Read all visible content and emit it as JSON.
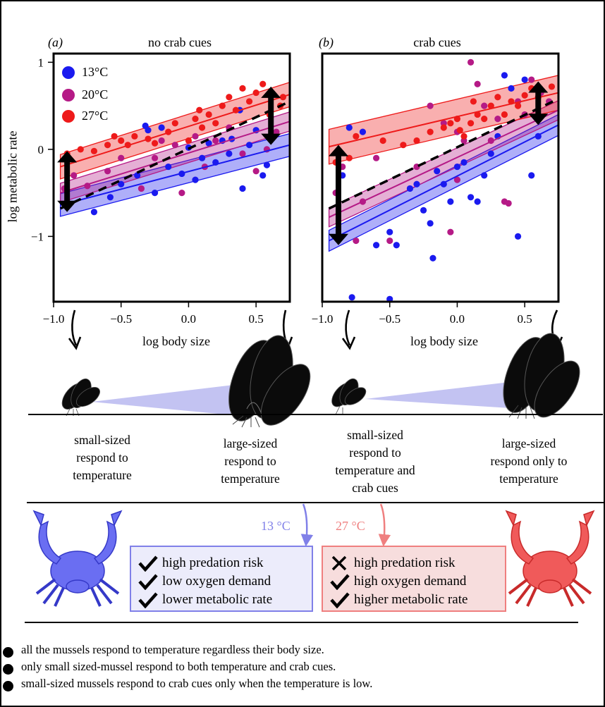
{
  "panels": [
    {
      "tag": "(a)",
      "title": "no crab cues"
    },
    {
      "tag": "(b)",
      "title": "crab cues"
    }
  ],
  "legend": [
    {
      "label": "13°C",
      "color": "#1a1aef"
    },
    {
      "label": "20°C",
      "color": "#b51a86"
    },
    {
      "label": "27°C",
      "color": "#ee1a1a"
    }
  ],
  "chart_data": [
    {
      "type": "scatter",
      "title": "no crab cues",
      "xlabel": "log body size",
      "ylabel": "log metabolic rate",
      "xlim": [
        -1.0,
        0.75
      ],
      "ylim": [
        -1.75,
        1.1
      ],
      "x_ticks": [
        "−1.0",
        "−0.5",
        "0.0",
        "0.5"
      ],
      "y_ticks": [
        "1",
        "0",
        "−1"
      ],
      "series": [
        {
          "name": "13°C",
          "fit": [
            [
              -0.95,
              -0.64
            ],
            [
              0.75,
              0.05
            ]
          ],
          "band": 0.13,
          "points": [
            [
              -0.7,
              -0.72
            ],
            [
              -0.58,
              -0.55
            ],
            [
              -0.5,
              -0.4
            ],
            [
              -0.38,
              -0.3
            ],
            [
              -0.3,
              0.22
            ],
            [
              -0.2,
              0.25
            ],
            [
              -0.15,
              -0.2
            ],
            [
              -0.05,
              -0.28
            ],
            [
              0.0,
              0.02
            ],
            [
              0.05,
              -0.35
            ],
            [
              0.1,
              -0.1
            ],
            [
              0.15,
              0.07
            ],
            [
              0.2,
              -0.15
            ],
            [
              0.3,
              -0.05
            ],
            [
              0.32,
              0.12
            ],
            [
              0.38,
              0.45
            ],
            [
              0.4,
              -0.45
            ],
            [
              0.45,
              0.05
            ],
            [
              0.5,
              0.22
            ],
            [
              0.55,
              -0.3
            ],
            [
              0.58,
              -0.18
            ],
            [
              -0.32,
              0.27
            ],
            [
              -0.25,
              -0.5
            ],
            [
              0.25,
              0.1
            ]
          ]
        },
        {
          "name": "20°C",
          "fit": [
            [
              -0.95,
              -0.5
            ],
            [
              0.75,
              0.32
            ]
          ],
          "band": 0.11,
          "points": [
            [
              -0.92,
              -0.45
            ],
            [
              -0.85,
              -0.3
            ],
            [
              -0.75,
              -0.42
            ],
            [
              -0.6,
              -0.25
            ],
            [
              -0.5,
              -0.1
            ],
            [
              -0.35,
              -0.45
            ],
            [
              -0.25,
              -0.1
            ],
            [
              -0.1,
              0.05
            ],
            [
              -0.05,
              -0.5
            ],
            [
              0.05,
              0.15
            ],
            [
              0.12,
              -0.2
            ],
            [
              0.2,
              0.1
            ],
            [
              0.3,
              0.25
            ],
            [
              0.4,
              -0.05
            ],
            [
              0.5,
              -0.25
            ],
            [
              0.58,
              0.0
            ],
            [
              0.65,
              0.2
            ],
            [
              -0.2,
              0.1
            ]
          ]
        },
        {
          "name": "27°C",
          "fit": [
            [
              -0.95,
              -0.2
            ],
            [
              0.75,
              0.63
            ]
          ],
          "band": 0.14,
          "points": [
            [
              -0.9,
              -0.05
            ],
            [
              -0.8,
              0.0
            ],
            [
              -0.7,
              -0.02
            ],
            [
              -0.6,
              0.05
            ],
            [
              -0.5,
              0.1
            ],
            [
              -0.45,
              0.05
            ],
            [
              -0.4,
              0.15
            ],
            [
              -0.3,
              0.12
            ],
            [
              -0.25,
              0.07
            ],
            [
              -0.15,
              0.2
            ],
            [
              -0.1,
              0.3
            ],
            [
              0.0,
              0.1
            ],
            [
              0.05,
              0.35
            ],
            [
              0.1,
              0.25
            ],
            [
              0.15,
              0.4
            ],
            [
              0.2,
              0.3
            ],
            [
              0.25,
              0.5
            ],
            [
              0.3,
              0.6
            ],
            [
              0.35,
              0.45
            ],
            [
              0.4,
              0.7
            ],
            [
              0.45,
              0.55
            ],
            [
              0.5,
              0.65
            ],
            [
              0.55,
              0.75
            ],
            [
              0.6,
              0.4
            ],
            [
              0.68,
              0.5
            ],
            [
              0.7,
              0.6
            ],
            [
              -0.55,
              0.15
            ],
            [
              0.08,
              0.45
            ]
          ]
        },
        {
          "name": "",
          "style": "dashed",
          "fit": [
            [
              -0.95,
              -0.68
            ],
            [
              0.75,
              0.55
            ]
          ]
        }
      ]
    },
    {
      "type": "scatter",
      "title": "crab cues",
      "xlabel": "log body size",
      "ylabel": "",
      "xlim": [
        -1.0,
        0.75
      ],
      "ylim": [
        -1.75,
        1.1
      ],
      "x_ticks": [
        "−1.0",
        "−0.5",
        "0.0",
        "0.5"
      ],
      "y_ticks": [],
      "series": [
        {
          "name": "13°C",
          "fit": [
            [
              -0.95,
              -1.05
            ],
            [
              0.75,
              0.28
            ]
          ],
          "band": 0.12,
          "points": [
            [
              -0.8,
              0.25
            ],
            [
              -0.7,
              0.2
            ],
            [
              -0.85,
              -0.3
            ],
            [
              -0.6,
              -1.1
            ],
            [
              -0.5,
              -0.95
            ],
            [
              -0.45,
              -1.1
            ],
            [
              -0.35,
              -0.45
            ],
            [
              -0.3,
              -0.4
            ],
            [
              -0.25,
              -0.7
            ],
            [
              -0.2,
              -0.85
            ],
            [
              -0.15,
              -0.25
            ],
            [
              -0.1,
              -0.4
            ],
            [
              -0.05,
              -0.6
            ],
            [
              0.0,
              -0.2
            ],
            [
              0.05,
              -0.15
            ],
            [
              0.1,
              -0.55
            ],
            [
              0.15,
              -0.6
            ],
            [
              0.2,
              -0.3
            ],
            [
              0.25,
              -0.05
            ],
            [
              0.3,
              0.15
            ],
            [
              0.35,
              0.85
            ],
            [
              0.4,
              0.7
            ],
            [
              0.5,
              0.8
            ],
            [
              0.55,
              -0.3
            ],
            [
              0.45,
              -1.0
            ],
            [
              -0.78,
              -1.7
            ],
            [
              -0.5,
              -1.72
            ],
            [
              -0.18,
              -1.25
            ],
            [
              0.6,
              0.15
            ]
          ]
        },
        {
          "name": "20°C",
          "fit": [
            [
              -0.95,
              -0.78
            ],
            [
              0.75,
              0.45
            ]
          ],
          "band": 0.11,
          "points": [
            [
              -0.9,
              -0.5
            ],
            [
              -0.85,
              -0.2
            ],
            [
              -0.7,
              -0.6
            ],
            [
              -0.6,
              -0.1
            ],
            [
              -0.5,
              -1.05
            ],
            [
              -0.3,
              -0.2
            ],
            [
              -0.2,
              0.5
            ],
            [
              -0.1,
              0.3
            ],
            [
              -0.05,
              -0.95
            ],
            [
              0.0,
              0.2
            ],
            [
              0.05,
              0.1
            ],
            [
              0.1,
              1.0
            ],
            [
              0.15,
              0.75
            ],
            [
              0.2,
              0.5
            ],
            [
              0.25,
              0.1
            ],
            [
              0.3,
              0.35
            ],
            [
              0.35,
              -0.6
            ],
            [
              0.38,
              -0.62
            ],
            [
              0.45,
              0.55
            ],
            [
              0.5,
              0.4
            ],
            [
              0.55,
              0.8
            ],
            [
              0.62,
              0.65
            ],
            [
              0.68,
              0.55
            ],
            [
              -0.75,
              -1.05
            ],
            [
              0.0,
              -0.35
            ]
          ]
        },
        {
          "name": "27°C",
          "fit": [
            [
              -0.95,
              0.03
            ],
            [
              0.75,
              0.65
            ]
          ],
          "band": 0.2,
          "points": [
            [
              -0.9,
              -0.15
            ],
            [
              -0.8,
              -0.1
            ],
            [
              -0.75,
              0.15
            ],
            [
              -0.55,
              0.1
            ],
            [
              -0.4,
              0.05
            ],
            [
              -0.3,
              0.1
            ],
            [
              -0.2,
              0.2
            ],
            [
              -0.1,
              0.25
            ],
            [
              -0.05,
              0.3
            ],
            [
              0.0,
              0.35
            ],
            [
              0.05,
              0.15
            ],
            [
              0.1,
              0.3
            ],
            [
              0.15,
              0.4
            ],
            [
              0.2,
              0.35
            ],
            [
              0.25,
              0.5
            ],
            [
              0.3,
              0.6
            ],
            [
              0.35,
              0.4
            ],
            [
              0.4,
              0.55
            ],
            [
              0.45,
              0.5
            ],
            [
              0.5,
              0.62
            ],
            [
              0.55,
              0.7
            ],
            [
              0.6,
              0.6
            ],
            [
              0.7,
              0.72
            ],
            [
              0.02,
              0.22
            ],
            [
              0.12,
              0.55
            ]
          ]
        },
        {
          "name": "",
          "style": "dashed",
          "fit": [
            [
              -0.95,
              -0.68
            ],
            [
              0.75,
              0.58
            ]
          ]
        }
      ]
    }
  ],
  "captions": [
    {
      "lines": [
        "small-sized",
        "respond to",
        "temperature"
      ]
    },
    {
      "lines": [
        "large-sized",
        "respond to",
        "temperature"
      ]
    },
    {
      "lines": [
        "small-sized",
        "respond to",
        "temperature and",
        "crab cues"
      ]
    },
    {
      "lines": [
        "large-sized",
        "respond only to",
        "temperature"
      ]
    }
  ],
  "conditions": [
    {
      "temp": "13 °C",
      "color": "#8080e8",
      "items": [
        {
          "mark": "check",
          "text": "high predation risk"
        },
        {
          "mark": "check",
          "text": "low oxygen demand"
        },
        {
          "mark": "check",
          "text": "lower metabolic rate"
        }
      ]
    },
    {
      "temp": "27 °C",
      "color": "#ef7f7f",
      "items": [
        {
          "mark": "cross",
          "text": "high predation risk"
        },
        {
          "mark": "check",
          "text": "high oxygen demand"
        },
        {
          "mark": "check",
          "text": "higher metabolic rate"
        }
      ]
    }
  ],
  "conclusions": [
    "all the mussels respond to temperature regardless their body size.",
    "only small sized-mussel respond to both temperature and crab cues.",
    "small-sized mussels respond to crab cues only when the temperature is low."
  ]
}
